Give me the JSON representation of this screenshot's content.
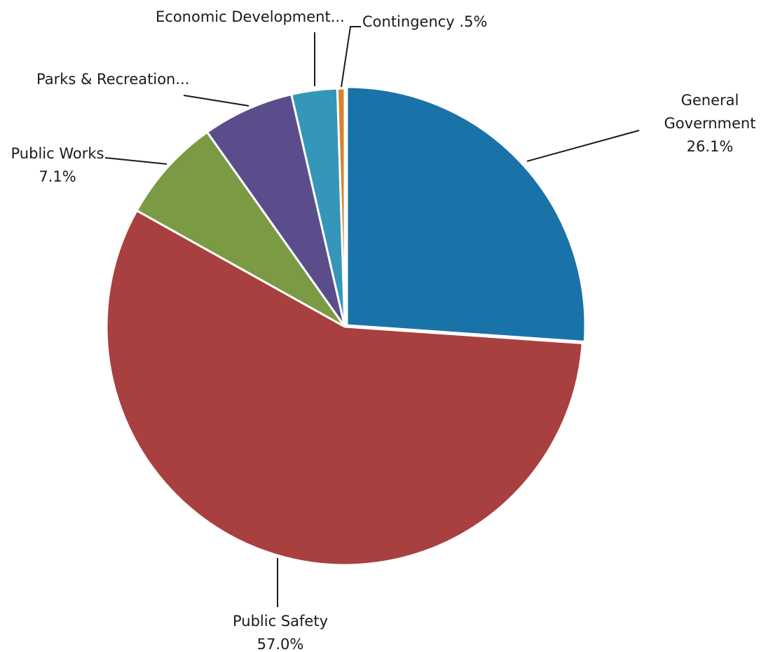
{
  "chart_data": {
    "type": "pie",
    "title": "",
    "slices": [
      {
        "name": "General Government",
        "value": 26.1,
        "label_lines": [
          "General",
          "Government",
          "26.1%"
        ],
        "color": "#1a73a8"
      },
      {
        "name": "Public Safety",
        "value": 57.0,
        "label_lines": [
          "Public Safety",
          "57.0%"
        ],
        "color": "#a8403f"
      },
      {
        "name": "Public Works",
        "value": 7.1,
        "label_lines": [
          "Public Works",
          "7.1%"
        ],
        "color": "#7a9a44"
      },
      {
        "name": "Parks & Recreation",
        "value": 6.2,
        "label_lines": [
          "Parks & Recreation..."
        ],
        "color": "#5b4d8c"
      },
      {
        "name": "Economic Development",
        "value": 3.1,
        "label_lines": [
          "Economic Development..."
        ],
        "color": "#3496b9"
      },
      {
        "name": "Contingency",
        "value": 0.5,
        "label_lines": [
          "Contingency .5%"
        ],
        "color": "#d9822b"
      }
    ]
  }
}
